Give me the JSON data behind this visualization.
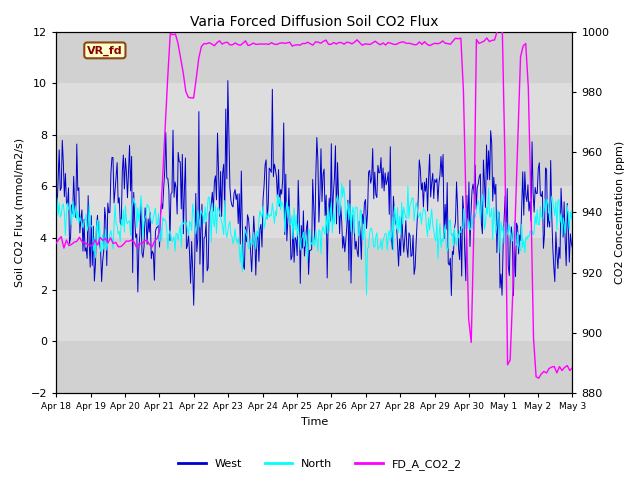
{
  "title": "Varia Forced Diffusion Soil CO2 Flux",
  "xlabel": "Time",
  "ylabel_left": "Soil CO2 Flux (mmol/m2/s)",
  "ylabel_right": "CO2 Concentration (ppm)",
  "ylim_left": [
    -2,
    12
  ],
  "ylim_right": [
    880,
    1000
  ],
  "yticks_left": [
    -2,
    0,
    2,
    4,
    6,
    8,
    10,
    12
  ],
  "yticks_right": [
    880,
    900,
    920,
    940,
    960,
    980,
    1000
  ],
  "xtick_labels": [
    "Apr 18",
    "Apr 19",
    "Apr 20",
    "Apr 21",
    "Apr 22",
    "Apr 23",
    "Apr 24",
    "Apr 25",
    "Apr 26",
    "Apr 27",
    "Apr 28",
    "Apr 29",
    "Apr 30",
    "May 1",
    "May 2",
    "May 3"
  ],
  "color_west": "#0000CD",
  "color_north": "#00FFFF",
  "color_fd": "#FF00FF",
  "background_color": "#DCDCDC",
  "band_color_light": "#E8E8E8",
  "band_color_white": "#F5F5F5",
  "annotation_text": "VR_fd",
  "annotation_box_facecolor": "#FFFFCC",
  "annotation_box_edgecolor": "#8B4513",
  "annotation_text_color": "#8B0000",
  "legend_labels": [
    "West",
    "North",
    "FD_A_CO2_2"
  ],
  "seed": 42,
  "figsize": [
    6.4,
    4.8
  ],
  "dpi": 100
}
